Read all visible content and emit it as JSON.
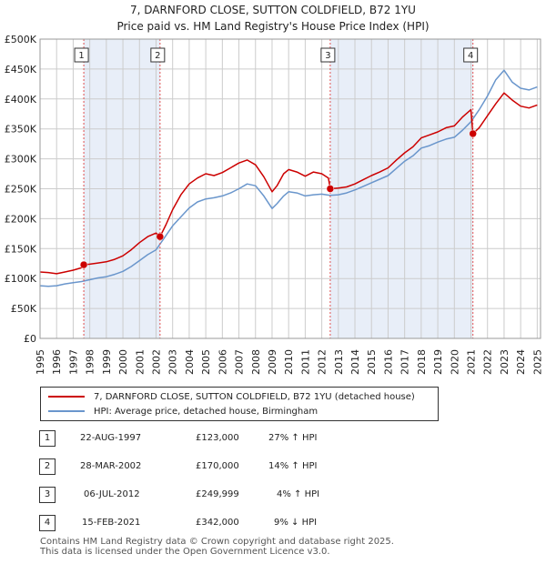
{
  "title": "7, DARNFORD CLOSE, SUTTON COLDFIELD, B72 1YU",
  "subtitle": "Price paid vs. HM Land Registry's House Price Index (HPI)",
  "legend": {
    "property_label": "7, DARNFORD CLOSE, SUTTON COLDFIELD, B72 1YU (detached house)",
    "hpi_label": "HPI: Average price, detached house, Birmingham"
  },
  "colors": {
    "property": "#cc0000",
    "hpi": "#6a96cc",
    "shade": "#e8eef8",
    "grid": "#cccccc"
  },
  "sales": [
    {
      "num": "1",
      "date": "22-AUG-1997",
      "price": "£123,000",
      "hpi": "27% ↑ HPI"
    },
    {
      "num": "2",
      "date": "28-MAR-2002",
      "price": "£170,000",
      "hpi": "14% ↑ HPI"
    },
    {
      "num": "3",
      "date": "06-JUL-2012",
      "price": "£249,999",
      "hpi": "4% ↑ HPI"
    },
    {
      "num": "4",
      "date": "15-FEB-2021",
      "price": "£342,000",
      "hpi": "9% ↓ HPI"
    }
  ],
  "footer": {
    "line1": "Contains HM Land Registry data © Crown copyright and database right 2025.",
    "line2": "This data is licensed under the Open Government Licence v3.0."
  },
  "chart_data": {
    "type": "line",
    "xlim": [
      1995,
      2025.2
    ],
    "ylim": [
      0,
      500000
    ],
    "yticks": [
      0,
      50000,
      100000,
      150000,
      200000,
      250000,
      300000,
      350000,
      400000,
      450000,
      500000
    ],
    "ytick_labels": [
      "£0",
      "£50K",
      "£100K",
      "£150K",
      "£200K",
      "£250K",
      "£300K",
      "£350K",
      "£400K",
      "£450K",
      "£500K"
    ],
    "xticks": [
      1995,
      1996,
      1997,
      1998,
      1999,
      2000,
      2001,
      2002,
      2003,
      2004,
      2005,
      2006,
      2007,
      2008,
      2009,
      2010,
      2011,
      2012,
      2013,
      2014,
      2015,
      2016,
      2017,
      2018,
      2019,
      2020,
      2021,
      2022,
      2023,
      2024,
      2025
    ],
    "shaded_ranges": [
      [
        1997.64,
        2002.24
      ],
      [
        2012.51,
        2021.12
      ]
    ],
    "sale_markers": [
      {
        "label": "1",
        "x": 1997.64,
        "y": 123000
      },
      {
        "label": "2",
        "x": 2002.24,
        "y": 170000
      },
      {
        "label": "3",
        "x": 2012.51,
        "y": 249999
      },
      {
        "label": "4",
        "x": 2021.12,
        "y": 342000
      }
    ],
    "series": [
      {
        "name": "7, DARNFORD CLOSE, SUTTON COLDFIELD, B72 1YU (detached house)",
        "points": [
          [
            1995.0,
            111000
          ],
          [
            1995.5,
            110000
          ],
          [
            1996.0,
            108000
          ],
          [
            1996.5,
            111000
          ],
          [
            1997.0,
            114000
          ],
          [
            1997.5,
            118000
          ],
          [
            1997.64,
            123000
          ],
          [
            1998.0,
            124000
          ],
          [
            1998.5,
            126000
          ],
          [
            1999.0,
            128000
          ],
          [
            1999.5,
            132000
          ],
          [
            2000.0,
            138000
          ],
          [
            2000.5,
            148000
          ],
          [
            2001.0,
            160000
          ],
          [
            2001.5,
            170000
          ],
          [
            2002.0,
            176000
          ],
          [
            2002.24,
            170000
          ],
          [
            2002.6,
            190000
          ],
          [
            2003.0,
            215000
          ],
          [
            2003.5,
            240000
          ],
          [
            2004.0,
            258000
          ],
          [
            2004.5,
            268000
          ],
          [
            2005.0,
            275000
          ],
          [
            2005.5,
            272000
          ],
          [
            2006.0,
            277000
          ],
          [
            2006.5,
            285000
          ],
          [
            2007.0,
            293000
          ],
          [
            2007.5,
            298000
          ],
          [
            2008.0,
            290000
          ],
          [
            2008.5,
            270000
          ],
          [
            2009.0,
            245000
          ],
          [
            2009.3,
            255000
          ],
          [
            2009.7,
            275000
          ],
          [
            2010.0,
            282000
          ],
          [
            2010.5,
            278000
          ],
          [
            2011.0,
            271000
          ],
          [
            2011.5,
            278000
          ],
          [
            2012.0,
            275000
          ],
          [
            2012.4,
            268000
          ],
          [
            2012.51,
            249999
          ],
          [
            2013.0,
            251000
          ],
          [
            2013.5,
            253000
          ],
          [
            2014.0,
            258000
          ],
          [
            2014.5,
            265000
          ],
          [
            2015.0,
            272000
          ],
          [
            2015.5,
            278000
          ],
          [
            2016.0,
            285000
          ],
          [
            2016.5,
            298000
          ],
          [
            2017.0,
            310000
          ],
          [
            2017.5,
            320000
          ],
          [
            2018.0,
            335000
          ],
          [
            2018.5,
            340000
          ],
          [
            2019.0,
            345000
          ],
          [
            2019.5,
            352000
          ],
          [
            2020.0,
            355000
          ],
          [
            2020.5,
            370000
          ],
          [
            2021.0,
            382000
          ],
          [
            2021.12,
            342000
          ],
          [
            2021.5,
            352000
          ],
          [
            2022.0,
            372000
          ],
          [
            2022.5,
            392000
          ],
          [
            2023.0,
            410000
          ],
          [
            2023.5,
            398000
          ],
          [
            2024.0,
            388000
          ],
          [
            2024.5,
            385000
          ],
          [
            2025.0,
            390000
          ]
        ]
      },
      {
        "name": "HPI: Average price, detached house, Birmingham",
        "points": [
          [
            1995.0,
            88000
          ],
          [
            1995.5,
            87000
          ],
          [
            1996.0,
            88000
          ],
          [
            1996.5,
            91000
          ],
          [
            1997.0,
            93000
          ],
          [
            1997.5,
            95000
          ],
          [
            1998.0,
            98000
          ],
          [
            1998.5,
            101000
          ],
          [
            1999.0,
            103000
          ],
          [
            1999.5,
            107000
          ],
          [
            2000.0,
            112000
          ],
          [
            2000.5,
            120000
          ],
          [
            2001.0,
            130000
          ],
          [
            2001.5,
            140000
          ],
          [
            2002.0,
            148000
          ],
          [
            2002.5,
            168000
          ],
          [
            2003.0,
            188000
          ],
          [
            2003.5,
            203000
          ],
          [
            2004.0,
            218000
          ],
          [
            2004.5,
            228000
          ],
          [
            2005.0,
            233000
          ],
          [
            2005.5,
            235000
          ],
          [
            2006.0,
            238000
          ],
          [
            2006.5,
            243000
          ],
          [
            2007.0,
            250000
          ],
          [
            2007.5,
            258000
          ],
          [
            2008.0,
            255000
          ],
          [
            2008.5,
            238000
          ],
          [
            2009.0,
            217000
          ],
          [
            2009.3,
            225000
          ],
          [
            2009.7,
            238000
          ],
          [
            2010.0,
            245000
          ],
          [
            2010.5,
            243000
          ],
          [
            2011.0,
            238000
          ],
          [
            2011.5,
            240000
          ],
          [
            2012.0,
            241000
          ],
          [
            2012.5,
            239000
          ],
          [
            2013.0,
            240000
          ],
          [
            2013.5,
            243000
          ],
          [
            2014.0,
            248000
          ],
          [
            2014.5,
            254000
          ],
          [
            2015.0,
            260000
          ],
          [
            2015.5,
            266000
          ],
          [
            2016.0,
            272000
          ],
          [
            2016.5,
            284000
          ],
          [
            2017.0,
            296000
          ],
          [
            2017.5,
            305000
          ],
          [
            2018.0,
            318000
          ],
          [
            2018.5,
            322000
          ],
          [
            2019.0,
            328000
          ],
          [
            2019.5,
            333000
          ],
          [
            2020.0,
            336000
          ],
          [
            2020.5,
            348000
          ],
          [
            2021.0,
            362000
          ],
          [
            2021.5,
            382000
          ],
          [
            2022.0,
            405000
          ],
          [
            2022.5,
            432000
          ],
          [
            2023.0,
            448000
          ],
          [
            2023.5,
            428000
          ],
          [
            2024.0,
            418000
          ],
          [
            2024.5,
            415000
          ],
          [
            2025.0,
            420000
          ]
        ]
      }
    ]
  }
}
